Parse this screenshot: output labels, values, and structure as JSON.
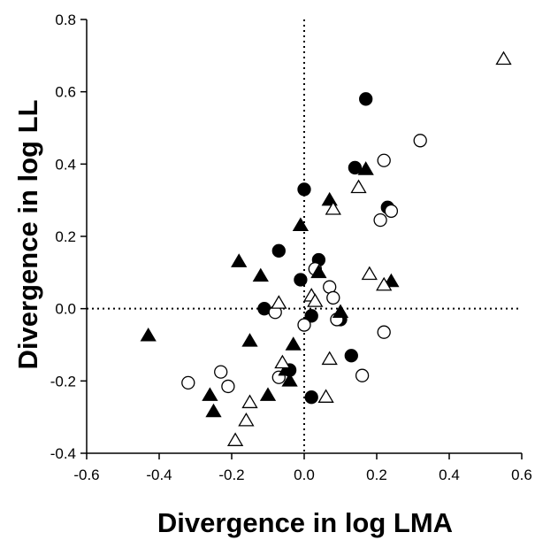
{
  "chart_data": {
    "type": "scatter",
    "title": "",
    "xlabel": "Divergence in log LMA",
    "ylabel": "Divergence in log LL",
    "xlim": [
      -0.6,
      0.6
    ],
    "ylim": [
      -0.4,
      0.8
    ],
    "xticks": [
      "-0.6",
      "-0.4",
      "-0.2",
      "0.0",
      "0.2",
      "0.4",
      "0.6"
    ],
    "yticks": [
      "-0.4",
      "-0.2",
      "0.0",
      "0.2",
      "0.4",
      "0.6",
      "0.8"
    ],
    "reference_lines": {
      "x": 0.0,
      "y": 0.0,
      "style": "dotted"
    },
    "grid": false,
    "series": [
      {
        "marker": "filled-circle",
        "points": [
          [
            0.17,
            0.58
          ],
          [
            0.14,
            0.39
          ],
          [
            0.0,
            0.33
          ],
          [
            0.23,
            0.28
          ],
          [
            -0.07,
            0.16
          ],
          [
            0.04,
            0.135
          ],
          [
            -0.01,
            0.08
          ],
          [
            -0.11,
            0.0
          ],
          [
            0.02,
            -0.02
          ],
          [
            0.1,
            -0.03
          ],
          [
            0.13,
            -0.13
          ],
          [
            -0.04,
            -0.17
          ],
          [
            0.02,
            -0.245
          ]
        ]
      },
      {
        "marker": "open-circle",
        "points": [
          [
            0.32,
            0.465
          ],
          [
            0.22,
            0.41
          ],
          [
            0.24,
            0.27
          ],
          [
            0.21,
            0.245
          ],
          [
            0.03,
            0.11
          ],
          [
            0.07,
            0.06
          ],
          [
            0.08,
            0.03
          ],
          [
            -0.08,
            -0.01
          ],
          [
            0.09,
            -0.03
          ],
          [
            0.0,
            -0.045
          ],
          [
            0.22,
            -0.065
          ],
          [
            -0.07,
            -0.19
          ],
          [
            0.16,
            -0.185
          ],
          [
            -0.23,
            -0.175
          ],
          [
            -0.21,
            -0.215
          ],
          [
            -0.32,
            -0.205
          ]
        ]
      },
      {
        "marker": "filled-triangle",
        "points": [
          [
            0.17,
            0.385
          ],
          [
            0.07,
            0.3
          ],
          [
            -0.01,
            0.23
          ],
          [
            0.04,
            0.1
          ],
          [
            -0.18,
            0.13
          ],
          [
            -0.12,
            0.09
          ],
          [
            0.24,
            0.075
          ],
          [
            0.1,
            -0.01
          ],
          [
            -0.43,
            -0.075
          ],
          [
            -0.15,
            -0.09
          ],
          [
            -0.03,
            -0.1
          ],
          [
            -0.05,
            -0.17
          ],
          [
            -0.04,
            -0.2
          ],
          [
            -0.1,
            -0.24
          ],
          [
            -0.26,
            -0.24
          ],
          [
            -0.25,
            -0.285
          ]
        ]
      },
      {
        "marker": "open-triangle",
        "points": [
          [
            0.55,
            0.69
          ],
          [
            0.15,
            0.335
          ],
          [
            0.08,
            0.275
          ],
          [
            0.18,
            0.095
          ],
          [
            0.22,
            0.065
          ],
          [
            0.02,
            0.035
          ],
          [
            0.03,
            0.02
          ],
          [
            -0.07,
            0.015
          ],
          [
            0.07,
            -0.14
          ],
          [
            -0.06,
            -0.15
          ],
          [
            -0.15,
            -0.26
          ],
          [
            0.06,
            -0.245
          ],
          [
            -0.16,
            -0.31
          ],
          [
            -0.19,
            -0.365
          ]
        ]
      }
    ]
  }
}
